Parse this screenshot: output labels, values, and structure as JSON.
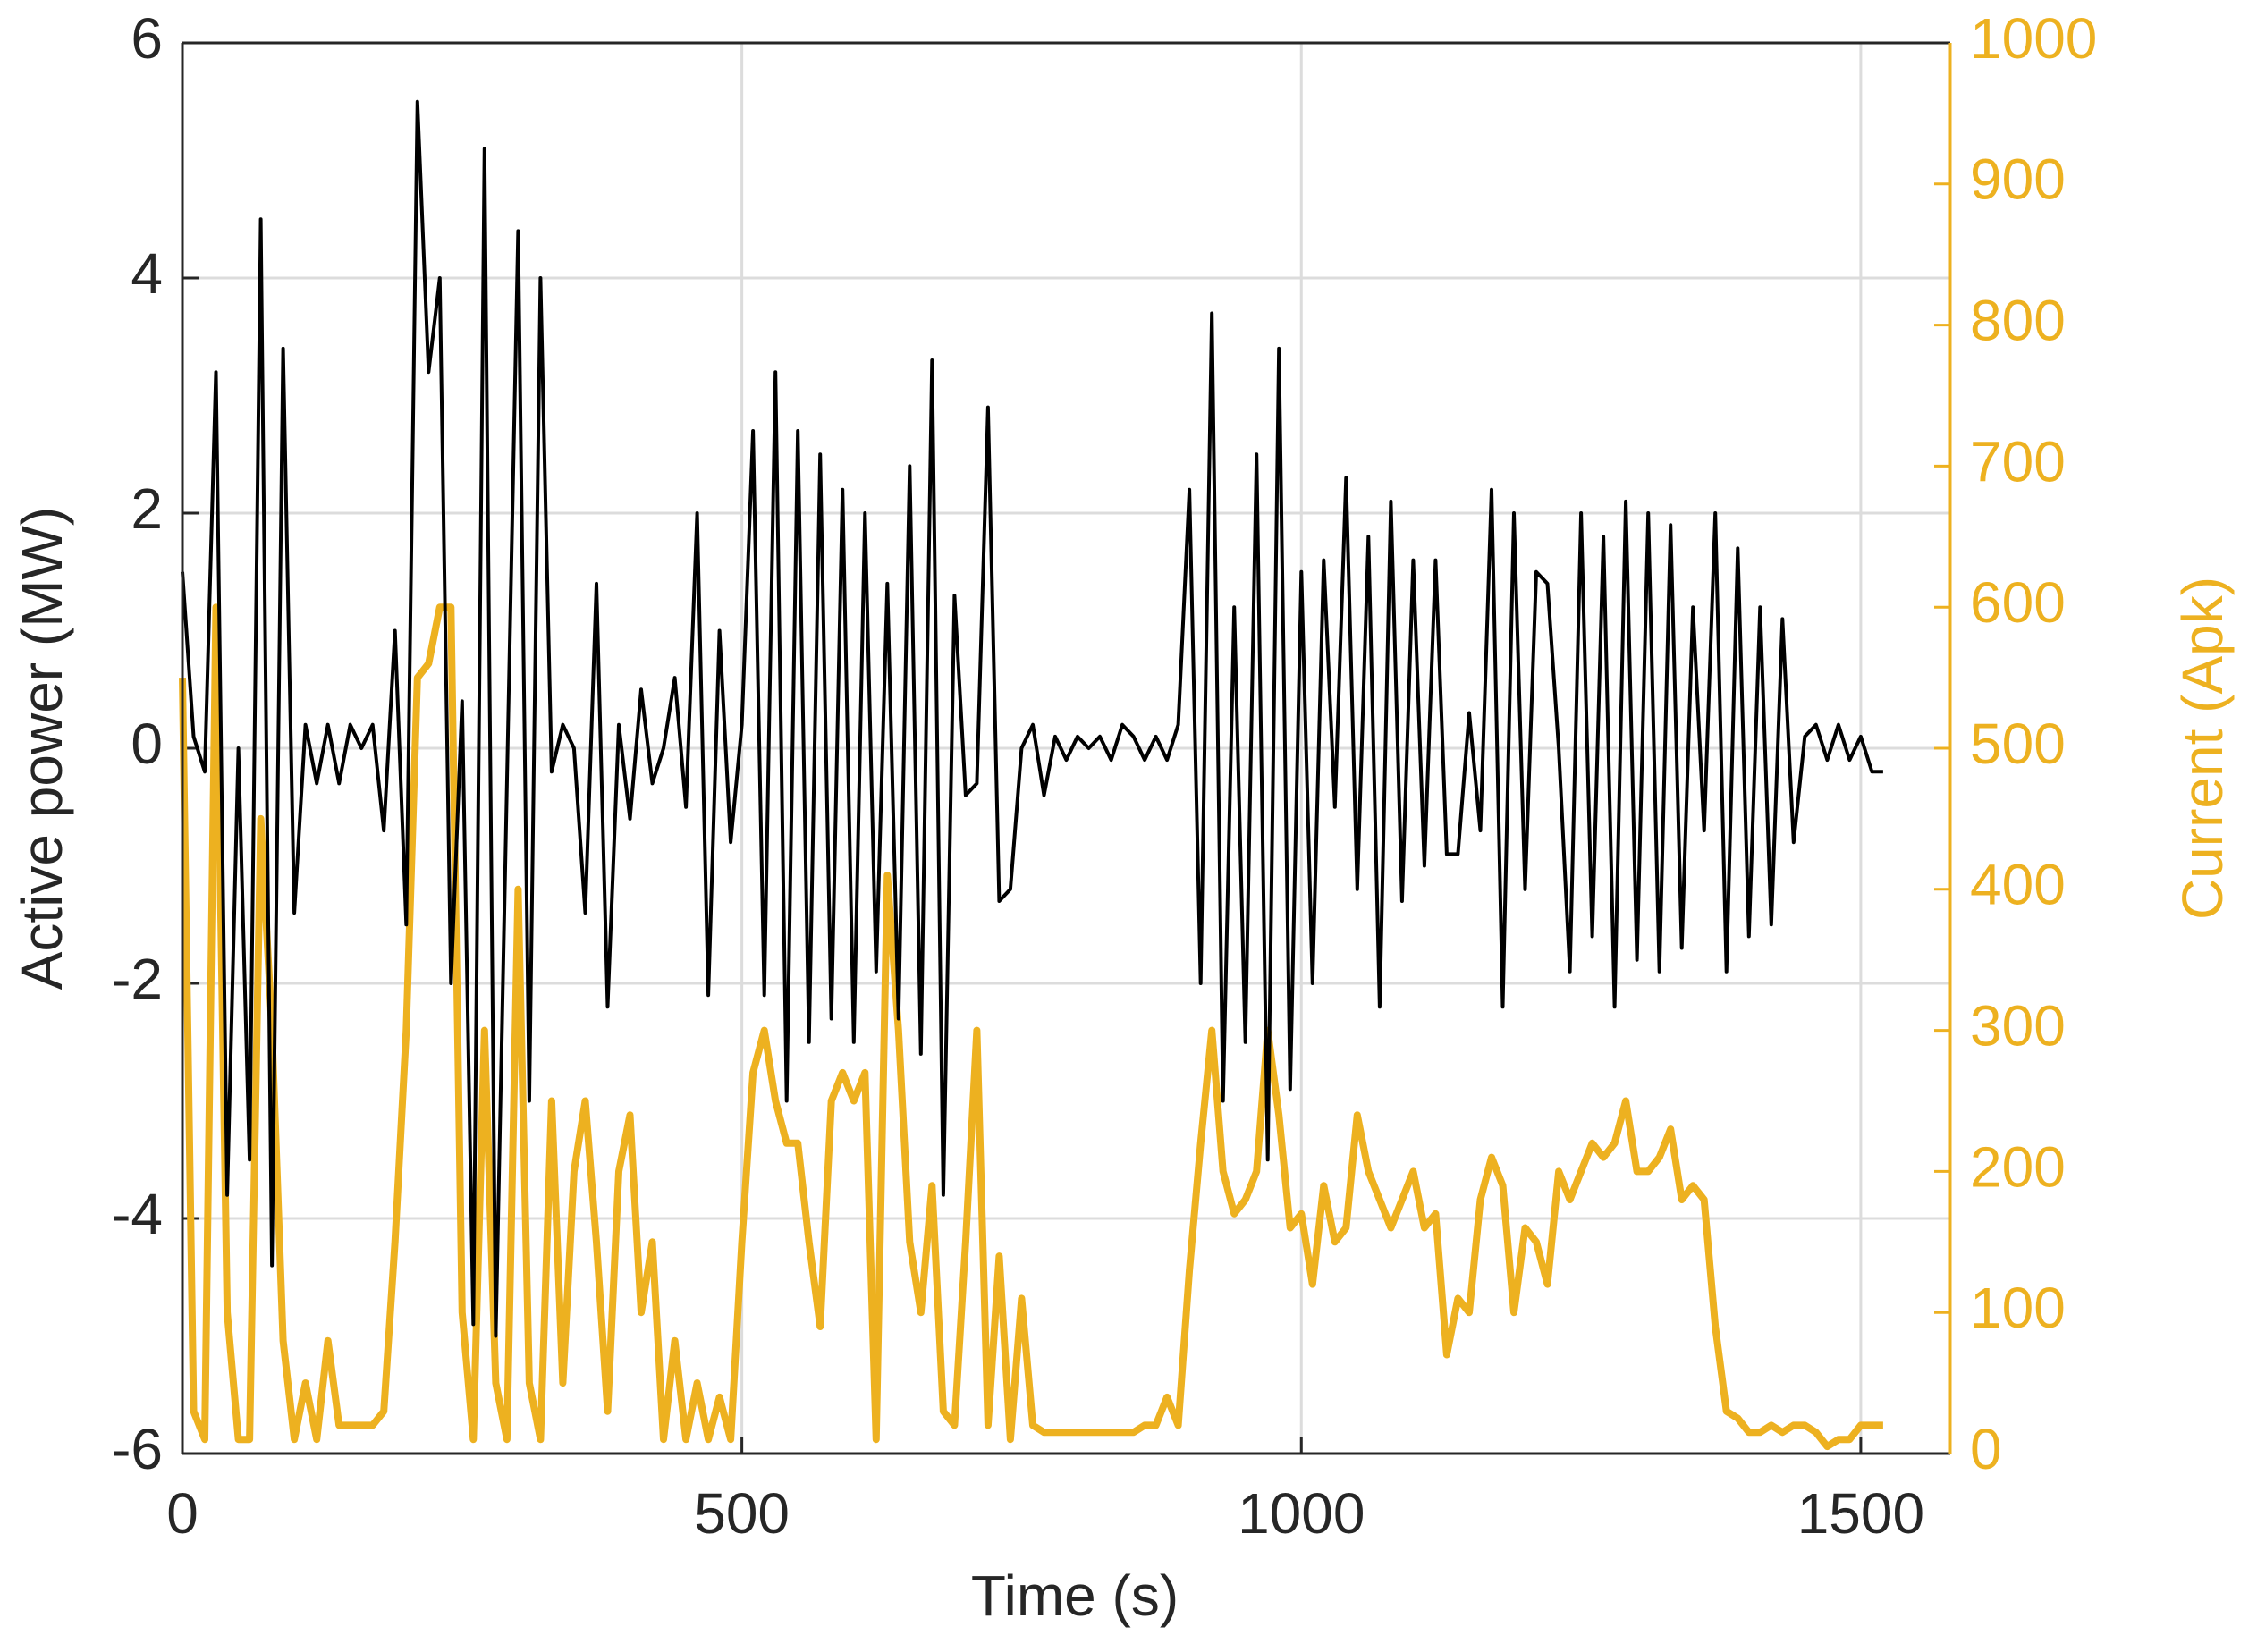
{
  "chart_data": {
    "type": "line",
    "x_label": "Time (s)",
    "y_label": "Active power (MW)",
    "y2_label": "Current (Apk)",
    "x": [
      0,
      10,
      20,
      30,
      40,
      50,
      60,
      70,
      80,
      90,
      100,
      110,
      120,
      130,
      140,
      150,
      160,
      170,
      180,
      190,
      200,
      210,
      220,
      230,
      240,
      250,
      260,
      270,
      280,
      290,
      300,
      310,
      320,
      330,
      340,
      350,
      360,
      370,
      380,
      390,
      400,
      410,
      420,
      430,
      440,
      450,
      460,
      470,
      480,
      490,
      500,
      510,
      520,
      530,
      540,
      550,
      560,
      570,
      580,
      590,
      600,
      610,
      620,
      630,
      640,
      650,
      660,
      670,
      680,
      690,
      700,
      710,
      720,
      730,
      740,
      750,
      760,
      770,
      780,
      790,
      800,
      810,
      820,
      830,
      840,
      850,
      860,
      870,
      880,
      890,
      900,
      910,
      920,
      930,
      940,
      950,
      960,
      970,
      980,
      990,
      1000,
      1010,
      1020,
      1030,
      1040,
      1050,
      1060,
      1070,
      1080,
      1090,
      1100,
      1110,
      1120,
      1130,
      1140,
      1150,
      1160,
      1170,
      1180,
      1190,
      1200,
      1210,
      1220,
      1230,
      1240,
      1250,
      1260,
      1270,
      1280,
      1290,
      1300,
      1310,
      1320,
      1330,
      1340,
      1350,
      1360,
      1370,
      1380,
      1390,
      1400,
      1410,
      1420,
      1430,
      1440,
      1450,
      1460,
      1470,
      1480,
      1490,
      1500,
      1510,
      1520
    ],
    "series": [
      {
        "name": "Current",
        "color": "#EDB120",
        "axis": "y2",
        "values": [
          550,
          30,
          10,
          600,
          100,
          10,
          10,
          450,
          300,
          80,
          10,
          50,
          10,
          80,
          20,
          20,
          20,
          20,
          30,
          150,
          300,
          550,
          560,
          600,
          600,
          100,
          10,
          300,
          50,
          10,
          400,
          50,
          10,
          250,
          50,
          200,
          250,
          150,
          30,
          200,
          240,
          100,
          150,
          10,
          80,
          10,
          50,
          10,
          40,
          10,
          150,
          270,
          300,
          250,
          220,
          220,
          150,
          90,
          250,
          270,
          250,
          270,
          10,
          410,
          300,
          150,
          100,
          190,
          30,
          20,
          150,
          300,
          20,
          140,
          10,
          110,
          20,
          15,
          15,
          15,
          15,
          15,
          15,
          15,
          15,
          15,
          20,
          20,
          40,
          20,
          130,
          220,
          300,
          200,
          170,
          180,
          200,
          300,
          240,
          160,
          170,
          120,
          190,
          150,
          160,
          240,
          200,
          180,
          160,
          180,
          200,
          160,
          170,
          70,
          110,
          100,
          180,
          210,
          190,
          100,
          160,
          150,
          120,
          200,
          180,
          200,
          220,
          210,
          220,
          250,
          200,
          200,
          210,
          230,
          180,
          190,
          180,
          90,
          30,
          25,
          15,
          15,
          20,
          15,
          20,
          20,
          15,
          5,
          10,
          10,
          20,
          20,
          20
        ]
      },
      {
        "name": "Active power",
        "color": "#000000",
        "values": [
          1.5,
          0.1,
          -0.2,
          3.2,
          -3.8,
          0,
          -3.5,
          4.5,
          -4.4,
          3.4,
          -1.4,
          0.2,
          -0.3,
          0.2,
          -0.3,
          0.2,
          0,
          0.2,
          -0.7,
          1.0,
          -1.5,
          5.5,
          3.2,
          4.0,
          -2,
          0.4,
          -4.9,
          5.1,
          -5,
          -0.3,
          4.4,
          -3,
          4.0,
          -0.2,
          0.2,
          0,
          -1.4,
          1.4,
          -2.2,
          0.2,
          -0.6,
          0.5,
          -0.3,
          0,
          0.6,
          -0.5,
          2.0,
          -2.1,
          1.0,
          -0.8,
          0.2,
          2.7,
          -2.1,
          3.2,
          -3.0,
          2.7,
          -2.5,
          2.5,
          -2.3,
          2.2,
          -2.5,
          2.0,
          -1.9,
          1.4,
          -2.3,
          2.4,
          -2.6,
          3.3,
          -3.8,
          1.3,
          -0.4,
          -0.3,
          2.9,
          -1.3,
          -1.2,
          0,
          0.2,
          -0.4,
          0.1,
          -0.1,
          0.1,
          0,
          0.1,
          -0.1,
          0.2,
          0.1,
          -0.1,
          0.1,
          -0.1,
          0.2,
          2.2,
          -2.0,
          3.7,
          -3.0,
          1.2,
          -2.5,
          2.5,
          -3.5,
          3.4,
          -2.9,
          1.5,
          -2.0,
          1.6,
          -0.5,
          2.3,
          -1.2,
          1.8,
          -2.2,
          2.1,
          -1.3,
          1.6,
          -1.0,
          1.6,
          -0.9,
          -0.9,
          0.3,
          -0.7,
          2.2,
          -2.2,
          2.0,
          -1.2,
          1.5,
          1.4,
          0,
          -1.9,
          2.0,
          -1.6,
          1.8,
          -2.2,
          2.1,
          -1.8,
          2.0,
          -1.9,
          1.9,
          -1.7,
          1.2,
          -0.7,
          2.0,
          -1.9,
          1.7,
          -1.6,
          1.2,
          -1.5,
          1.1,
          -0.8,
          0.1,
          0.2,
          -0.1,
          0.2,
          -0.1,
          0.1,
          -0.2,
          -0.2
        ]
      }
    ],
    "xlim": [
      0,
      1580
    ],
    "xticks": [
      0,
      500,
      1000,
      1500
    ],
    "ylim": [
      -6,
      6
    ],
    "yticks": [
      -6,
      -4,
      -2,
      0,
      2,
      4,
      6
    ],
    "y2lim": [
      0,
      1000
    ],
    "y2ticks": [
      0,
      100,
      200,
      300,
      400,
      500,
      600,
      700,
      800,
      900,
      1000
    ],
    "grid": true
  }
}
